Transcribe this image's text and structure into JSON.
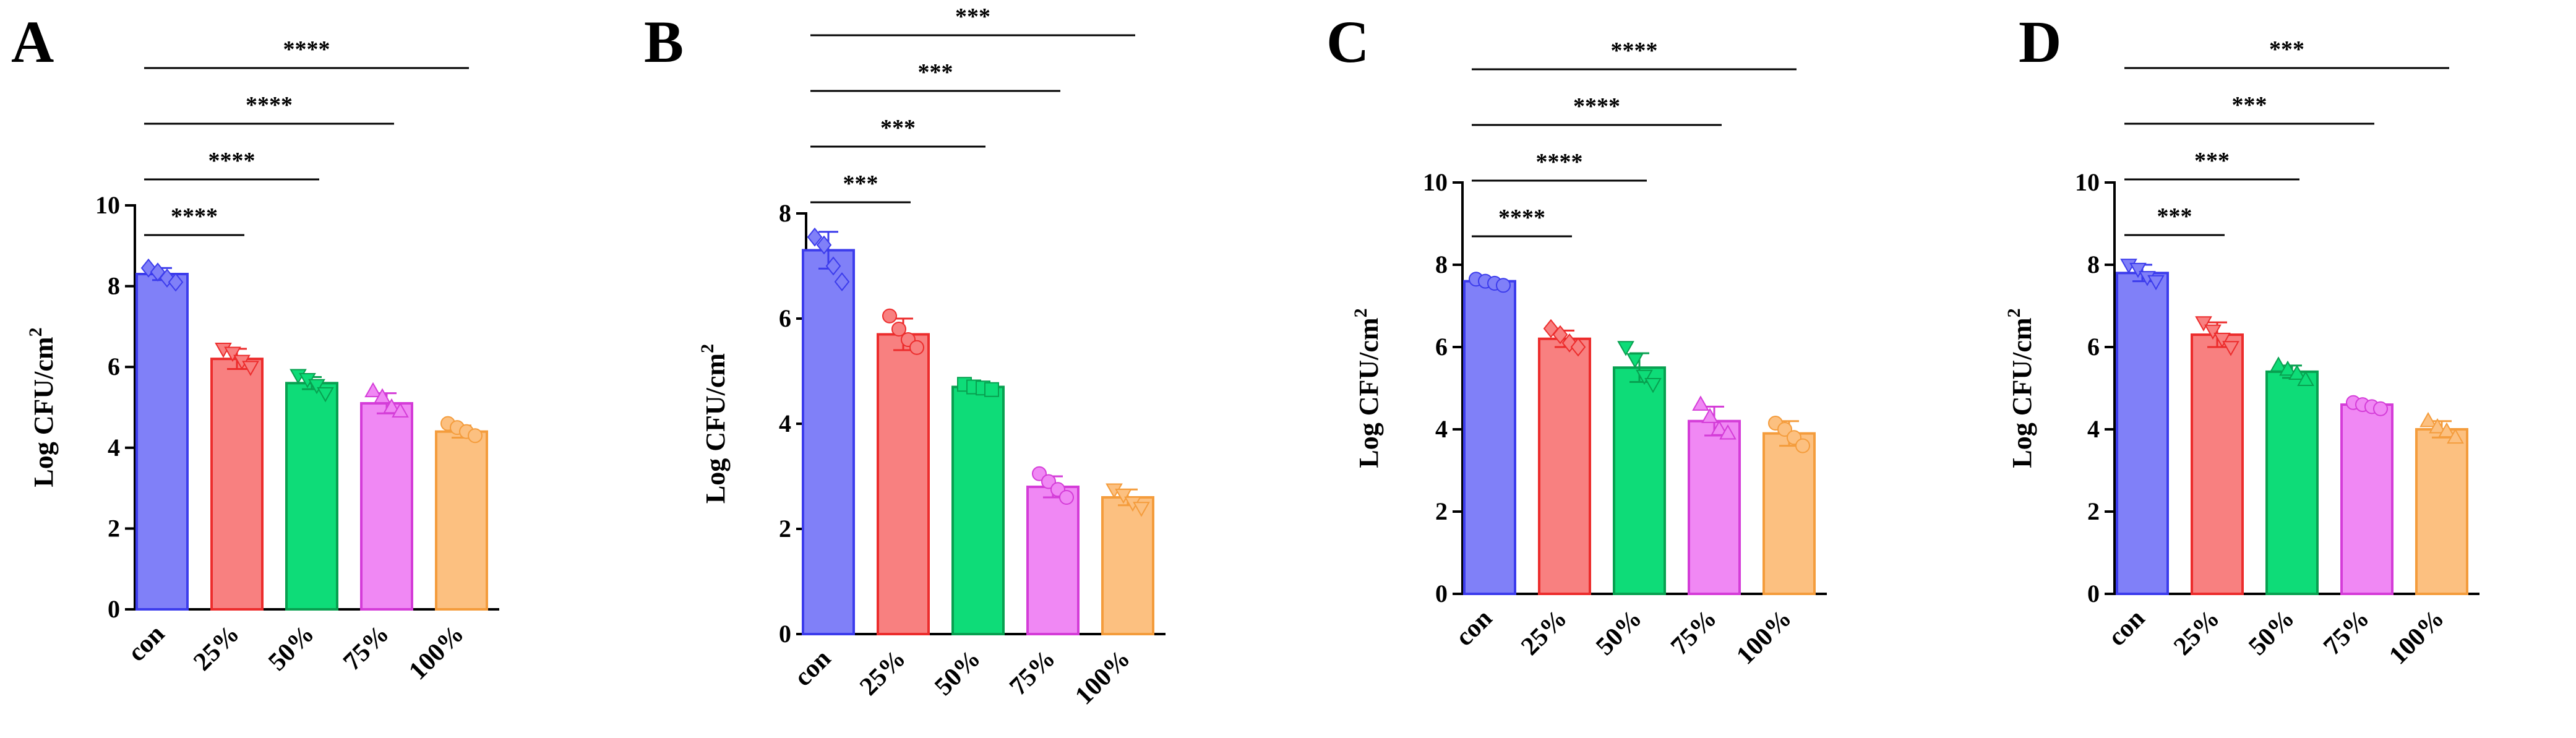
{
  "chart_data": [
    {
      "type": "bar",
      "panel_label": "A",
      "categories": [
        "con",
        "25%",
        "50%",
        "75%",
        "100%"
      ],
      "values": [
        8.3,
        6.2,
        5.6,
        5.1,
        4.4
      ],
      "errors": [
        0.15,
        0.25,
        0.15,
        0.25,
        0.15
      ],
      "points": [
        [
          8.45,
          8.35,
          8.2,
          8.1
        ],
        [
          6.45,
          6.35,
          6.15,
          6.0
        ],
        [
          5.8,
          5.7,
          5.55,
          5.35
        ],
        [
          5.4,
          5.25,
          5.0,
          4.9
        ],
        [
          4.6,
          4.5,
          4.4,
          4.3
        ]
      ],
      "markers": [
        "diamond",
        "triangle-down",
        "triangle-down",
        "triangle-up",
        "circle"
      ],
      "xlabel": "",
      "ylabel": "Log CFU/cm",
      "ylabel_sup": "2",
      "ylim": [
        0,
        10
      ],
      "yticks": [
        "0",
        "2",
        "4",
        "6",
        "8",
        "10"
      ],
      "significance": [
        {
          "from": "con",
          "to": "25%",
          "label": "****"
        },
        {
          "from": "con",
          "to": "50%",
          "label": "****"
        },
        {
          "from": "con",
          "to": "75%",
          "label": "****"
        },
        {
          "from": "con",
          "to": "100%",
          "label": "****"
        }
      ]
    },
    {
      "type": "bar",
      "panel_label": "B",
      "categories": [
        "con",
        "25%",
        "50%",
        "75%",
        "100%"
      ],
      "values": [
        7.3,
        5.7,
        4.7,
        2.8,
        2.6
      ],
      "errors": [
        0.35,
        0.3,
        0.05,
        0.2,
        0.15
      ],
      "points": [
        [
          7.55,
          7.4,
          7.0,
          6.7
        ],
        [
          6.05,
          5.8,
          5.6,
          5.45
        ],
        [
          4.75,
          4.7,
          4.68,
          4.65
        ],
        [
          3.05,
          2.9,
          2.75,
          2.6
        ],
        [
          2.75,
          2.65,
          2.5,
          2.4
        ]
      ],
      "markers": [
        "diamond",
        "circle",
        "square",
        "circle",
        "triangle-down"
      ],
      "xlabel": "",
      "ylabel": "Log CFU/cm",
      "ylabel_sup": "2",
      "ylim": [
        0,
        8
      ],
      "yticks": [
        "0",
        "2",
        "4",
        "6",
        "8"
      ],
      "significance": [
        {
          "from": "con",
          "to": "25%",
          "label": "***"
        },
        {
          "from": "con",
          "to": "50%",
          "label": "***"
        },
        {
          "from": "con",
          "to": "75%",
          "label": "***"
        },
        {
          "from": "con",
          "to": "100%",
          "label": "***"
        }
      ]
    },
    {
      "type": "bar",
      "panel_label": "C",
      "categories": [
        "con",
        "25%",
        "50%",
        "75%",
        "100%"
      ],
      "values": [
        7.6,
        6.2,
        5.5,
        4.2,
        3.9
      ],
      "errors": [
        0.05,
        0.2,
        0.35,
        0.35,
        0.3
      ],
      "points": [
        [
          7.65,
          7.6,
          7.55,
          7.5
        ],
        [
          6.45,
          6.3,
          6.1,
          6.0
        ],
        [
          6.0,
          5.7,
          5.3,
          5.1
        ],
        [
          4.6,
          4.3,
          4.0,
          3.9
        ],
        [
          4.15,
          4.0,
          3.8,
          3.6
        ]
      ],
      "markers": [
        "circle",
        "diamond",
        "triangle-down",
        "triangle-up",
        "circle"
      ],
      "xlabel": "",
      "ylabel": "Log CFU/cm",
      "ylabel_sup": "2",
      "ylim": [
        0,
        10
      ],
      "yticks": [
        "0",
        "2",
        "4",
        "6",
        "8",
        "10"
      ],
      "significance": [
        {
          "from": "con",
          "to": "25%",
          "label": "****"
        },
        {
          "from": "con",
          "to": "50%",
          "label": "****"
        },
        {
          "from": "con",
          "to": "75%",
          "label": "****"
        },
        {
          "from": "con",
          "to": "100%",
          "label": "****"
        }
      ]
    },
    {
      "type": "bar",
      "panel_label": "D",
      "categories": [
        "con",
        "25%",
        "50%",
        "75%",
        "100%"
      ],
      "values": [
        7.8,
        6.3,
        5.4,
        4.6,
        4.0
      ],
      "errors": [
        0.2,
        0.3,
        0.15,
        0.05,
        0.2
      ],
      "points": [
        [
          8.0,
          7.9,
          7.7,
          7.6
        ],
        [
          6.6,
          6.4,
          6.2,
          6.0
        ],
        [
          5.55,
          5.45,
          5.35,
          5.2
        ],
        [
          4.65,
          4.6,
          4.55,
          4.5
        ],
        [
          4.2,
          4.05,
          3.95,
          3.8
        ]
      ],
      "markers": [
        "triangle-down",
        "triangle-down",
        "triangle-up",
        "circle",
        "triangle-up"
      ],
      "xlabel": "",
      "ylabel": "Log CFU/cm",
      "ylabel_sup": "2",
      "ylim": [
        0,
        10
      ],
      "yticks": [
        "0",
        "2",
        "4",
        "6",
        "8",
        "10"
      ],
      "significance": [
        {
          "from": "con",
          "to": "25%",
          "label": "***"
        },
        {
          "from": "con",
          "to": "50%",
          "label": "***"
        },
        {
          "from": "con",
          "to": "75%",
          "label": "***"
        },
        {
          "from": "con",
          "to": "100%",
          "label": "***"
        }
      ]
    }
  ],
  "colors": {
    "fills": [
      "#8080f8",
      "#f88080",
      "#0edc78",
      "#f088f4",
      "#fcc080"
    ],
    "strokes": [
      "#3c3cec",
      "#ec2c2c",
      "#08a050",
      "#d43cd8",
      "#f49c3c"
    ]
  }
}
